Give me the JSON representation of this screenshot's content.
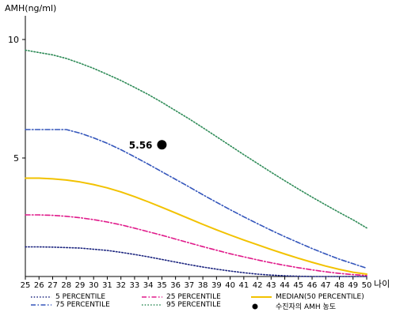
{
  "chart_data": {
    "type": "line",
    "ylabel": "AMH(ng/ml)",
    "xlabel": "나이",
    "x": [
      25,
      26,
      27,
      28,
      29,
      30,
      31,
      32,
      33,
      34,
      35,
      36,
      37,
      38,
      39,
      40,
      41,
      42,
      43,
      44,
      45,
      46,
      47,
      48,
      49,
      50
    ],
    "xlim": [
      25,
      50
    ],
    "ylim": [
      0,
      11
    ],
    "yticks": [
      5,
      10
    ],
    "grid": false,
    "legend_position": "bottom",
    "series": [
      {
        "name": "5 PERCENTILE",
        "color": "#1a237e",
        "style": "dotted",
        "values": [
          1.25,
          1.25,
          1.24,
          1.22,
          1.2,
          1.15,
          1.1,
          1.02,
          0.93,
          0.83,
          0.72,
          0.61,
          0.5,
          0.4,
          0.31,
          0.23,
          0.16,
          0.1,
          0.06,
          0.03,
          0.01,
          0.0,
          0.0,
          0.0,
          0.0,
          0.0
        ]
      },
      {
        "name": "25 PERCENTILE",
        "color": "#e0198a",
        "style": "dashdot",
        "values": [
          2.6,
          2.6,
          2.58,
          2.54,
          2.48,
          2.4,
          2.3,
          2.18,
          2.04,
          1.89,
          1.74,
          1.58,
          1.42,
          1.26,
          1.11,
          0.96,
          0.83,
          0.7,
          0.58,
          0.47,
          0.37,
          0.28,
          0.2,
          0.13,
          0.08,
          0.04
        ]
      },
      {
        "name": "MEDIAN(50 PERCENTILE)",
        "color": "#f2c200",
        "style": "solid",
        "values": [
          4.15,
          4.15,
          4.12,
          4.07,
          3.99,
          3.88,
          3.74,
          3.57,
          3.37,
          3.15,
          2.92,
          2.68,
          2.44,
          2.2,
          1.97,
          1.75,
          1.54,
          1.34,
          1.14,
          0.95,
          0.77,
          0.6,
          0.44,
          0.3,
          0.18,
          0.1
        ]
      },
      {
        "name": "75 PERCENTILE",
        "color": "#3355bb",
        "style": "dashdot",
        "values": [
          6.2,
          6.2,
          6.2,
          6.2,
          6.05,
          5.85,
          5.62,
          5.35,
          5.05,
          4.74,
          4.42,
          4.1,
          3.78,
          3.45,
          3.13,
          2.82,
          2.52,
          2.23,
          1.95,
          1.68,
          1.43,
          1.18,
          0.95,
          0.73,
          0.54,
          0.35
        ]
      },
      {
        "name": "95 PERCENTILE",
        "color": "#2e8b57",
        "style": "dotted",
        "values": [
          9.55,
          9.45,
          9.35,
          9.2,
          9.0,
          8.78,
          8.53,
          8.27,
          7.98,
          7.68,
          7.35,
          7.0,
          6.65,
          6.28,
          5.9,
          5.52,
          5.14,
          4.77,
          4.4,
          4.04,
          3.69,
          3.35,
          3.02,
          2.7,
          2.39,
          2.05
        ]
      }
    ],
    "marker": {
      "name": "수진자의 AMH 농도",
      "x": 35,
      "y": 5.56,
      "label": "5.56",
      "color": "#000000"
    }
  }
}
